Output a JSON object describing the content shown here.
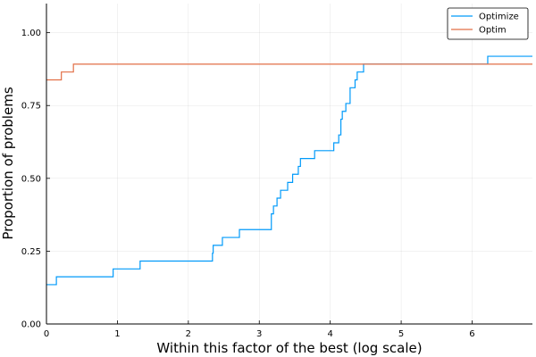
{
  "chart_data": {
    "type": "line",
    "subtype": "step (performance profile)",
    "xlabel": "Within this factor of the best (log scale)",
    "ylabel": "Proportion of problems",
    "xlim": [
      0,
      6.85
    ],
    "ylim": [
      0,
      1.1
    ],
    "xticks": [
      0,
      1,
      2,
      3,
      4,
      5,
      6
    ],
    "xtick_labels": [
      "0",
      "1",
      "2",
      "3",
      "4",
      "5",
      "6"
    ],
    "yticks": [
      0,
      0.25,
      0.5,
      0.75,
      1.0
    ],
    "ytick_labels": [
      "0.00",
      "0.25",
      "0.50",
      "0.75",
      "1.00"
    ],
    "grid": true,
    "legend_position": "top-right",
    "series": [
      {
        "name": "Optimize",
        "color": "#009AFA",
        "x": [
          0,
          0.14,
          0.94,
          1.32,
          2.34,
          2.35,
          2.37,
          2.48,
          2.72,
          3.17,
          3.2,
          3.25,
          3.3,
          3.4,
          3.47,
          3.55,
          3.58,
          3.78,
          4.05,
          4.12,
          4.15,
          4.17,
          4.22,
          4.28,
          4.35,
          4.38,
          4.47,
          6.22,
          6.85
        ],
        "y": [
          0.135,
          0.162,
          0.189,
          0.216,
          0.243,
          0.27,
          0.27,
          0.297,
          0.324,
          0.378,
          0.405,
          0.432,
          0.459,
          0.486,
          0.514,
          0.541,
          0.568,
          0.595,
          0.622,
          0.649,
          0.703,
          0.73,
          0.757,
          0.811,
          0.838,
          0.865,
          0.892,
          0.919,
          0.919
        ]
      },
      {
        "name": "Optim",
        "color": "#E26F46",
        "x": [
          0,
          0.21,
          0.38,
          6.85
        ],
        "y": [
          0.838,
          0.865,
          0.892,
          0.892
        ]
      }
    ]
  }
}
